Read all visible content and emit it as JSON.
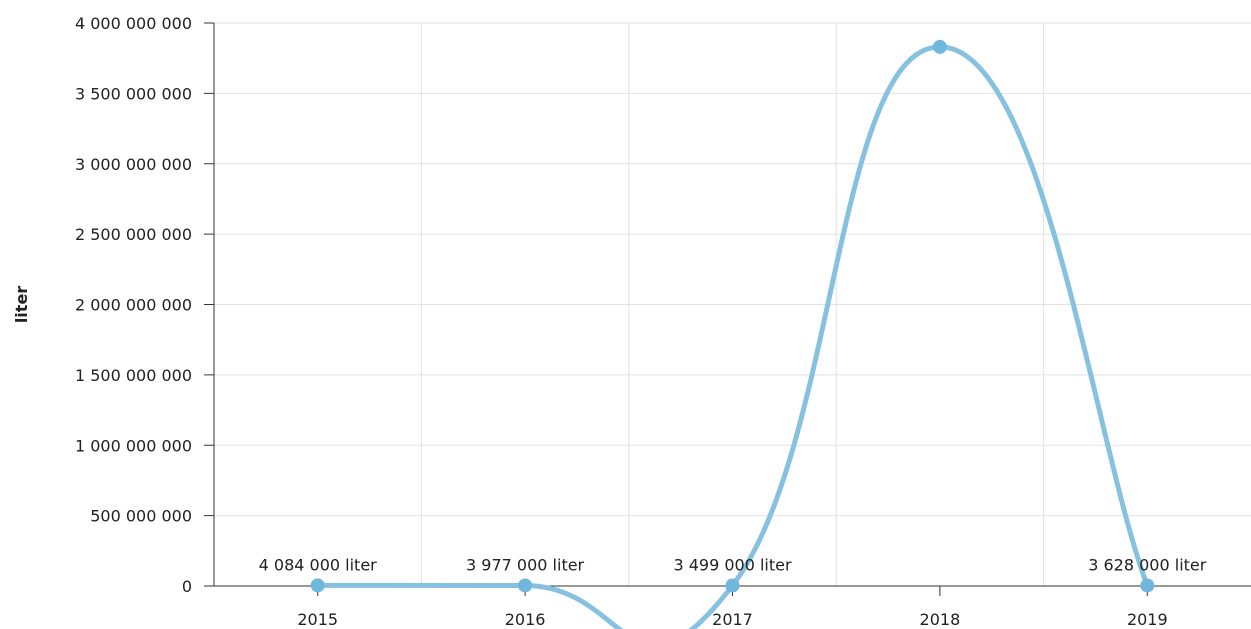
{
  "chart_data": {
    "type": "line",
    "smooth": true,
    "ylabel": "liter",
    "xlabel": "",
    "ylim": [
      0,
      4000000000
    ],
    "yticks": [
      0,
      500000000,
      1000000000,
      1500000000,
      2000000000,
      2500000000,
      3000000000,
      3500000000,
      4000000000
    ],
    "ytick_labels": [
      "0",
      "500 000 000",
      "1 000 000 000",
      "1 500 000 000",
      "2 000 000 000",
      "2 500 000 000",
      "3 000 000 000",
      "3 500 000 000",
      "4 000 000 000"
    ],
    "categories": [
      "2015",
      "2016",
      "2017",
      "2018",
      "2019"
    ],
    "series": [
      {
        "values": [
          4084000,
          3977000,
          3499000,
          3830000000,
          3628000
        ],
        "data_labels": [
          "4 084 000 liter",
          "3 977 000 liter",
          "3 499 000 liter",
          "",
          "3 628 000 liter"
        ],
        "color": "#6fb7dc"
      }
    ],
    "grid": true,
    "legend": "none"
  }
}
